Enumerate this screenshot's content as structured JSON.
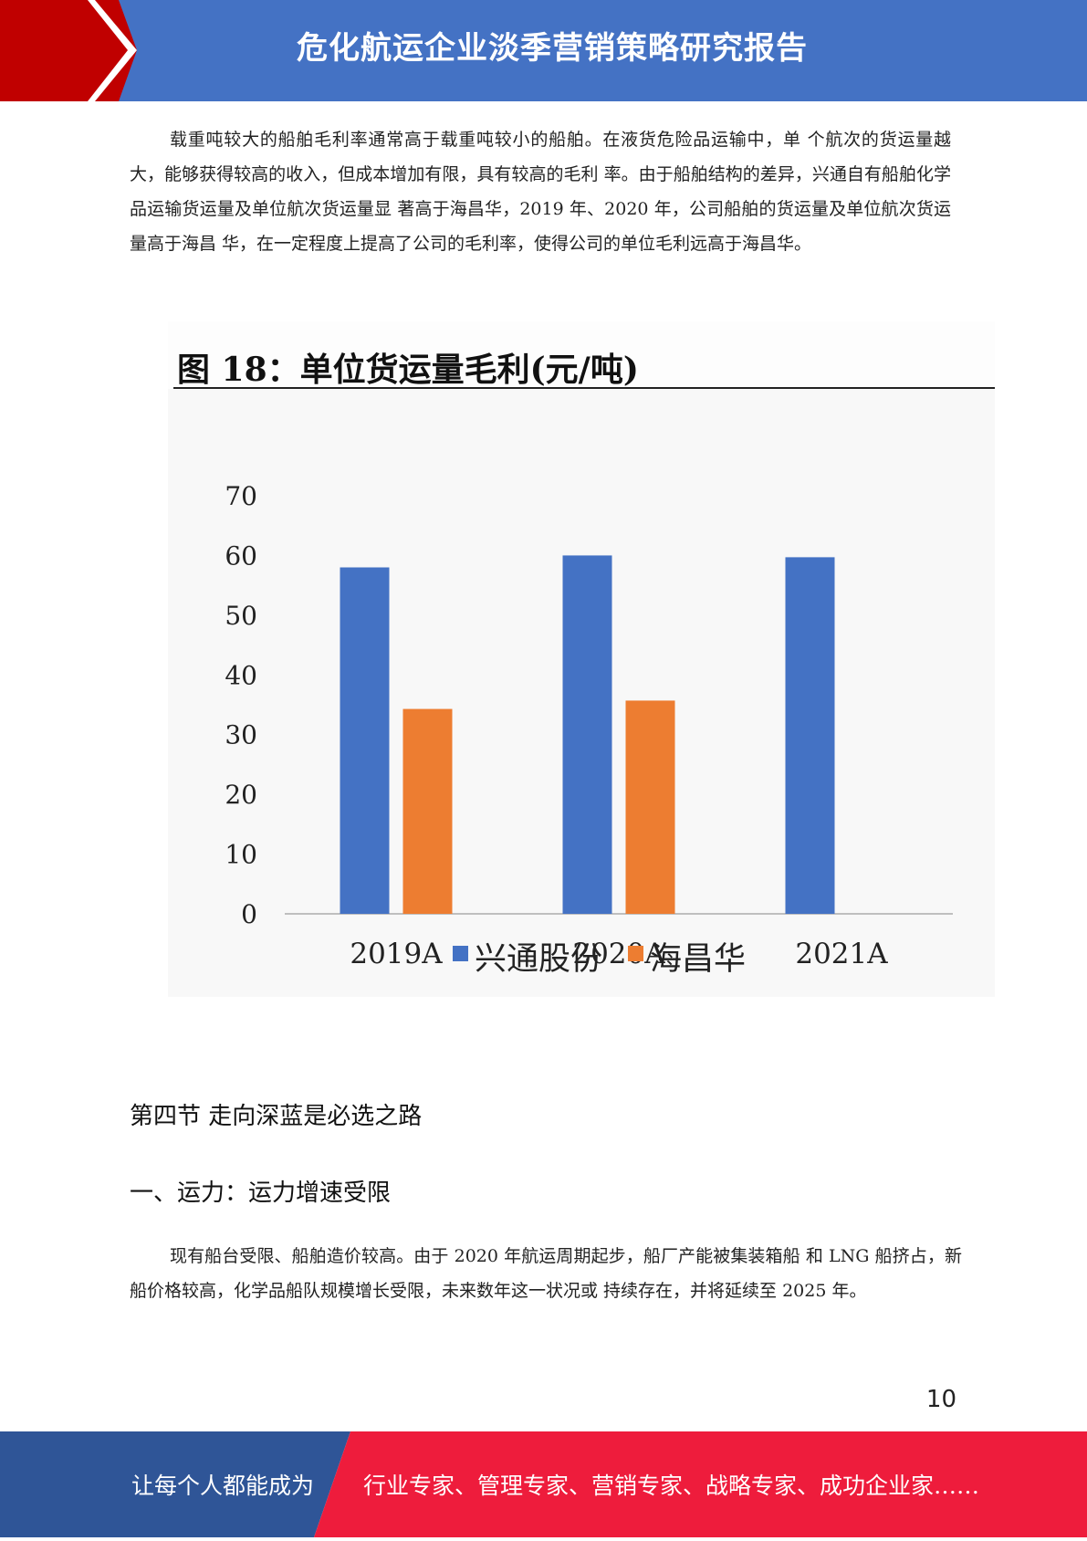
{
  "header": {
    "title": "危化航运企业淡季营销策略研究报告",
    "bar_color": "#4472c4",
    "accent_color": "#c00000"
  },
  "body": {
    "paragraph1": "载重吨较大的船舶毛利率通常高于载重吨较小的船舶。在液货危险品运输中，单 个航次的货运量越大，能够获得较高的收入，但成本增加有限，具有较高的毛利 率。由于船舶结构的差异，兴通自有船舶化学品运输货运量及单位航次货运量显 著高于海昌华，2019 年、2020 年，公司船舶的货运量及单位航次货运量高于海昌 华，在一定程度上提高了公司的毛利率，使得公司的单位毛利远高于海昌华。",
    "section_heading": "第四节 走向深蓝是必选之路",
    "sub_heading": "一、运力：运力增速受限",
    "paragraph2": "现有船台受限、船舶造价较高。由于 2020 年航运周期起步，船厂产能被集装箱船 和 LNG 船挤占，新船价格较高，化学品船队规模增长受限，未来数年这一状况或 持续存在，并将延续至 2025 年。",
    "page_number": "10"
  },
  "chart_data": {
    "type": "bar",
    "title": "图 18：单位货运量毛利(元/吨)",
    "categories": [
      "2019A",
      "2020A",
      "2021A"
    ],
    "series": [
      {
        "name": "兴通股份",
        "values": [
          58,
          60,
          59.7
        ],
        "color": "#4472c4"
      },
      {
        "name": "海昌华",
        "values": [
          34.3,
          35.7,
          null
        ],
        "color": "#ed7d31"
      }
    ],
    "ylim": [
      0,
      70
    ],
    "yticks": [
      "0",
      "10",
      "20",
      "30",
      "40",
      "50",
      "60",
      "70"
    ],
    "xlabel": "",
    "ylabel": "",
    "grid": false,
    "legend_position": "bottom"
  },
  "footer": {
    "left_text": "让每个人都能成为",
    "right_text": "行业专家、管理专家、营销专家、战略专家、成功企业家……",
    "left_color": "#2f5597",
    "right_color": "#ee1c3c"
  }
}
